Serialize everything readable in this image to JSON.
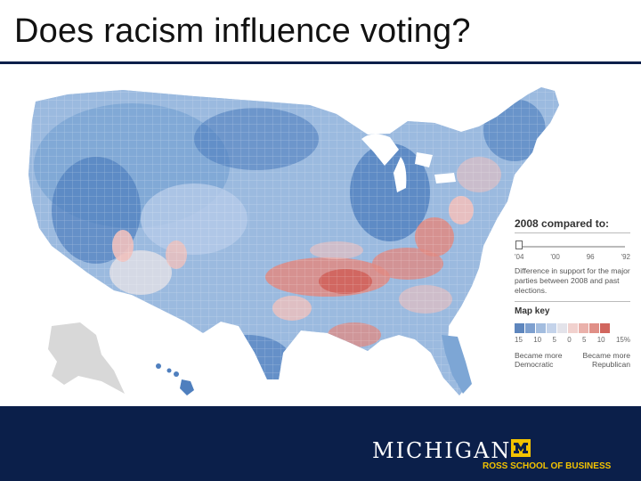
{
  "slide": {
    "title": "Does racism influence voting?"
  },
  "map": {
    "colors": {
      "strong_dem": "#4f7fbe",
      "dem": "#7da6d5",
      "light_dem": "#b5cbe8",
      "neutral": "#dcdde6",
      "light_rep": "#f0c0bc",
      "rep": "#e08a82",
      "strong_rep": "#cf5d55",
      "alaska_gray": "#d8d8d8"
    }
  },
  "legend": {
    "heading": "2008 compared to:",
    "years": [
      "'04",
      "'00",
      "96",
      "'92"
    ],
    "selected_year": "'04",
    "description": "Difference in support for the major parties between 2008 and past elections.",
    "key_title": "Map key",
    "swatch_colors": [
      "#5e86bd",
      "#7ea0cf",
      "#a3bddf",
      "#c4d3ea",
      "#e3e3ea",
      "#f1d1ce",
      "#eab1ab",
      "#e08f87",
      "#d1665e"
    ],
    "percents": [
      "15",
      "10",
      "5",
      "0",
      "5",
      "10",
      "15%"
    ],
    "left_label": "Became more Democratic",
    "right_label": "Became more Republican"
  },
  "footer": {
    "brand": "MICHIGAN",
    "school": "ROSS SCHOOL OF BUSINESS",
    "block_color": "#f2c200",
    "bg_color": "#0b1f4a"
  }
}
